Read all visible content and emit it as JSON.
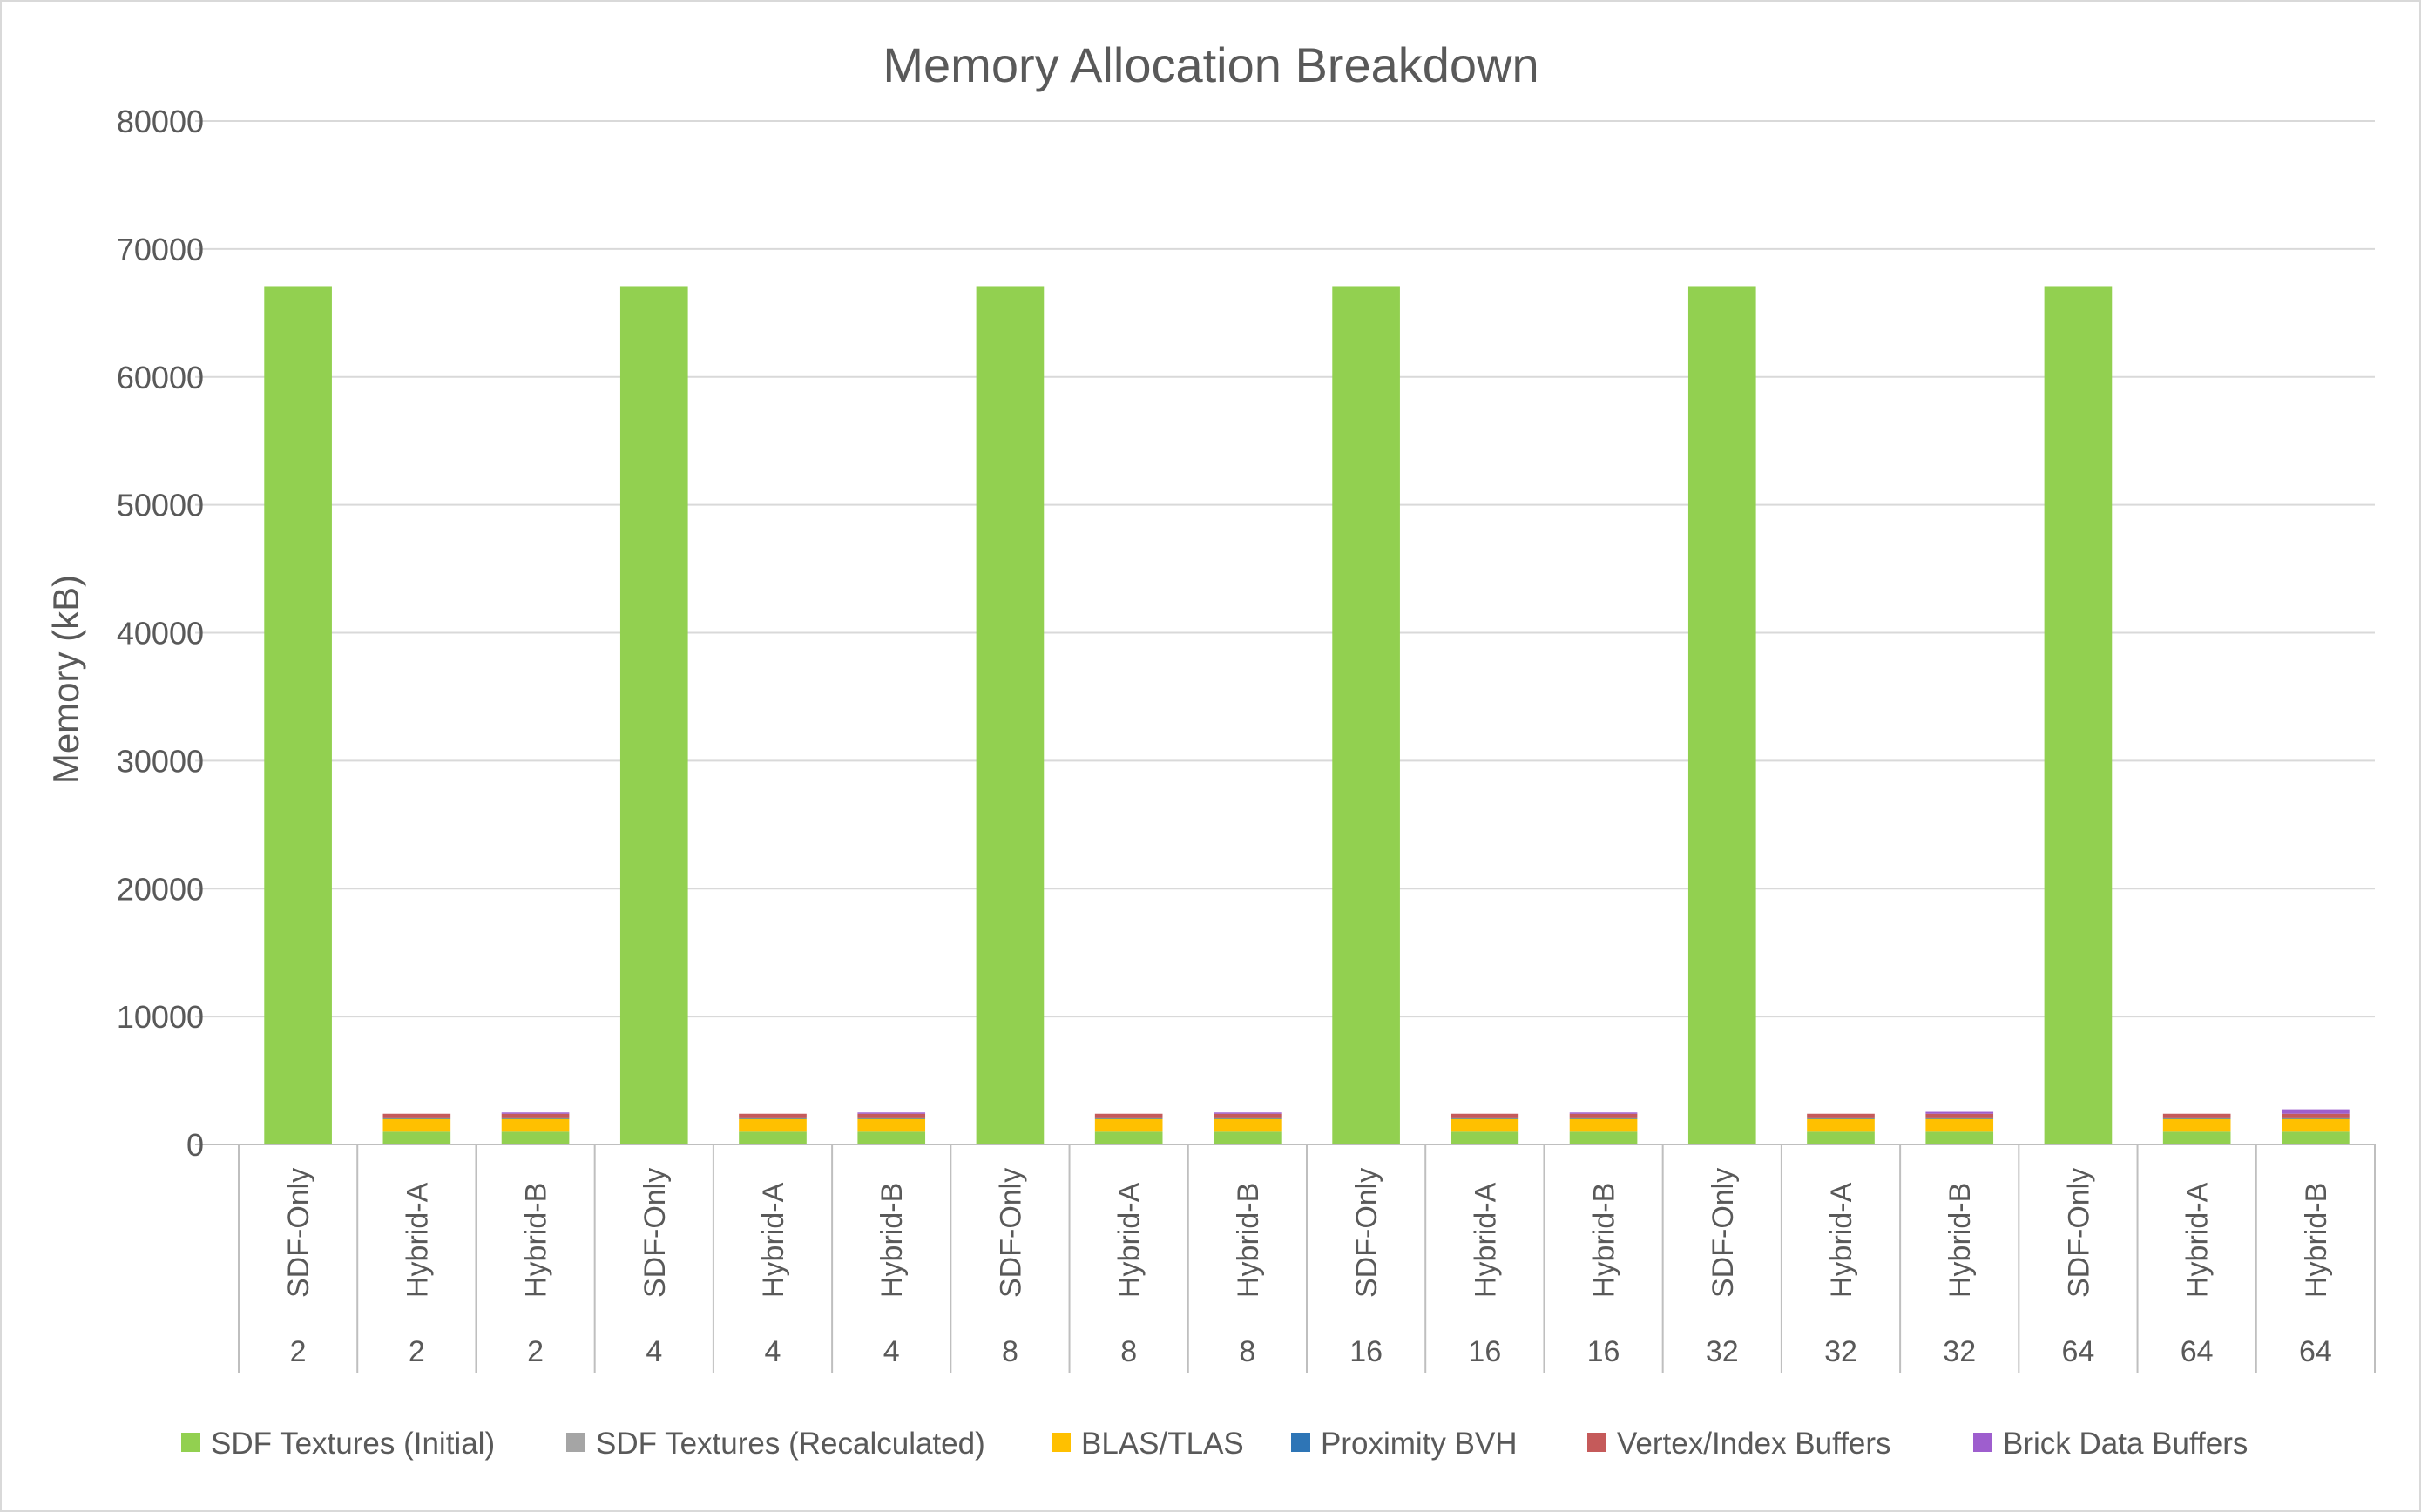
{
  "chart_data": {
    "type": "bar",
    "stacked": true,
    "title": "Memory Allocation Breakdown",
    "xlabel": "",
    "ylabel": "Memory (kB)",
    "ylim": [
      0,
      80000
    ],
    "yticks": [
      0,
      10000,
      20000,
      30000,
      40000,
      50000,
      60000,
      70000,
      80000
    ],
    "grid": true,
    "legend": "bottom",
    "categories": [
      "SDF-Only",
      "Hybrid-A",
      "Hybrid-B",
      "SDF-Only",
      "Hybrid-A",
      "Hybrid-B",
      "SDF-Only",
      "Hybrid-A",
      "Hybrid-B",
      "SDF-Only",
      "Hybrid-A",
      "Hybrid-B",
      "SDF-Only",
      "Hybrid-A",
      "Hybrid-B",
      "SDF-Only",
      "Hybrid-A",
      "Hybrid-B"
    ],
    "groups": [
      "2",
      "2",
      "2",
      "4",
      "4",
      "4",
      "8",
      "8",
      "8",
      "16",
      "16",
      "16",
      "32",
      "32",
      "32",
      "64",
      "64",
      "64"
    ],
    "series": [
      {
        "name": "SDF Textures (Initial)",
        "color": "#92d050",
        "values": [
          67100,
          1000,
          1000,
          67100,
          1000,
          1000,
          67100,
          1000,
          1000,
          67100,
          1000,
          1000,
          67100,
          1000,
          1000,
          67100,
          1000,
          1000
        ]
      },
      {
        "name": "SDF Textures (Recalculated)",
        "color": "#a5a5a5",
        "values": [
          0,
          0,
          0,
          0,
          0,
          0,
          0,
          0,
          0,
          0,
          0,
          0,
          0,
          0,
          0,
          0,
          0,
          0
        ]
      },
      {
        "name": "BLAS/TLAS",
        "color": "#ffc000",
        "values": [
          0,
          1000,
          1000,
          0,
          1000,
          1000,
          0,
          1000,
          1000,
          0,
          1000,
          1000,
          0,
          1000,
          1000,
          0,
          1000,
          1000
        ]
      },
      {
        "name": "Proximity BVH",
        "color": "#2e75b6",
        "values": [
          0,
          50,
          50,
          0,
          50,
          50,
          0,
          50,
          50,
          0,
          50,
          50,
          0,
          50,
          50,
          0,
          50,
          50
        ]
      },
      {
        "name": "Vertex/Index Buffers",
        "color": "#c55a5a",
        "values": [
          0,
          350,
          350,
          0,
          350,
          350,
          0,
          350,
          350,
          0,
          350,
          350,
          0,
          350,
          350,
          0,
          350,
          350
        ]
      },
      {
        "name": "Brick Data Buffers",
        "color": "#9e5ece",
        "values": [
          0,
          0,
          100,
          0,
          0,
          100,
          0,
          0,
          100,
          0,
          0,
          100,
          0,
          0,
          150,
          0,
          0,
          350
        ]
      }
    ]
  }
}
